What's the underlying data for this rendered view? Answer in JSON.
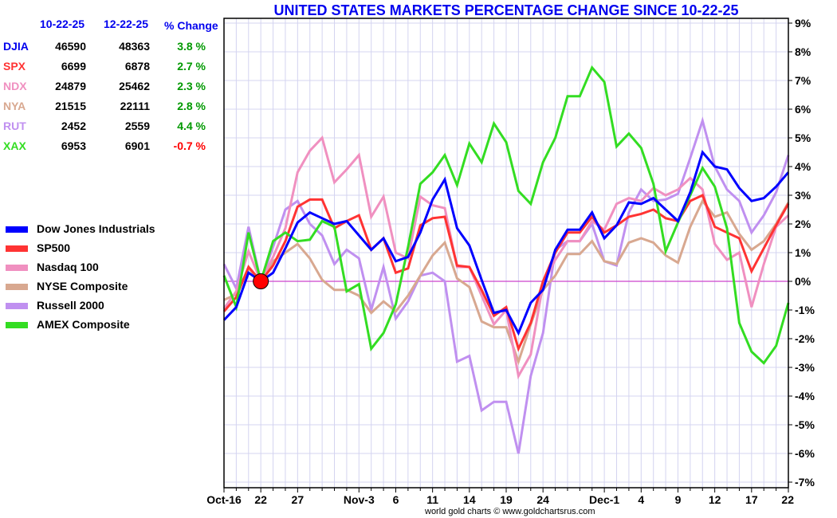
{
  "title": "UNITED STATES MARKETS PERCENTAGE CHANGE SINCE 10-22-25",
  "footer": "world gold charts © www.goldchartsrus.com",
  "table": {
    "headers": [
      "10-22-25",
      "12-22-25",
      "% Change"
    ],
    "rows": [
      {
        "symbol": "DJIA",
        "start": "46590",
        "end": "48363",
        "change": "3.8 %",
        "color": "#0000ee",
        "change_color": "#009900"
      },
      {
        "symbol": "SPX",
        "start": "6699",
        "end": "6878",
        "change": "2.7 %",
        "color": "#ff3333",
        "change_color": "#009900"
      },
      {
        "symbol": "NDX",
        "start": "24879",
        "end": "25462",
        "change": "2.3 %",
        "color": "#f090c0",
        "change_color": "#009900"
      },
      {
        "symbol": "NYA",
        "start": "21515",
        "end": "22111",
        "change": "2.8 %",
        "color": "#d8a890",
        "change_color": "#009900"
      },
      {
        "symbol": "RUT",
        "start": "2452",
        "end": "2559",
        "change": "4.4 %",
        "color": "#c090f0",
        "change_color": "#009900"
      },
      {
        "symbol": "XAX",
        "start": "6953",
        "end": "6901",
        "change": "-0.7 %",
        "color": "#33dd22",
        "change_color": "#ff0000"
      }
    ]
  },
  "chart_data": {
    "type": "line",
    "title": "UNITED STATES MARKETS PERCENTAGE CHANGE SINCE 10-22-25",
    "xlabel": "",
    "ylabel": "",
    "ylim": [
      -7,
      9
    ],
    "yticks": [
      9,
      8,
      7,
      6,
      5,
      4,
      3,
      2,
      1,
      0,
      -1,
      -2,
      -3,
      -4,
      -5,
      -6,
      -7
    ],
    "ytick_labels": [
      "9%",
      "8%",
      "7%",
      "6%",
      "5%",
      "4%",
      "3%",
      "2%",
      "1%",
      "0%",
      "-1%",
      "-2%",
      "-3%",
      "-4%",
      "-5%",
      "-6%",
      "-7%"
    ],
    "x_count": 47,
    "xtick_labels": [
      {
        "index": 0,
        "label": "Oct-16"
      },
      {
        "index": 3,
        "label": "22"
      },
      {
        "index": 6,
        "label": "27"
      },
      {
        "index": 11,
        "label": "Nov-3"
      },
      {
        "index": 14,
        "label": "6"
      },
      {
        "index": 17,
        "label": "11"
      },
      {
        "index": 20,
        "label": "14"
      },
      {
        "index": 23,
        "label": "19"
      },
      {
        "index": 26,
        "label": "24"
      },
      {
        "index": 31,
        "label": "Dec-1"
      },
      {
        "index": 34,
        "label": "4"
      },
      {
        "index": 37,
        "label": "9"
      },
      {
        "index": 40,
        "label": "12"
      },
      {
        "index": 43,
        "label": "17"
      },
      {
        "index": 46,
        "label": "22"
      }
    ],
    "baseline_marker": {
      "index": 3,
      "value": 0,
      "color": "#ff0000"
    },
    "zero_line_color": "#cc44cc",
    "grid": true,
    "legend_position": "left",
    "series": [
      {
        "name": "RUT",
        "legend": "Russell 2000",
        "color": "#c090f0",
        "values": [
          0.6,
          -0.25,
          1.9,
          0,
          1.2,
          2.5,
          2.8,
          2.0,
          1.6,
          0.6,
          1.1,
          0.8,
          -1.0,
          0.5,
          -1.3,
          -0.7,
          0.2,
          0.3,
          0.0,
          -2.8,
          -2.6,
          -4.5,
          -4.2,
          -4.2,
          -6.0,
          -3.3,
          -1.8,
          1.1,
          1.4,
          1.4,
          2.0,
          0.7,
          0.55,
          2.4,
          3.2,
          2.8,
          2.85,
          3.05,
          4.3,
          5.6,
          4.0,
          3.2,
          2.8,
          1.7,
          2.3,
          3.1,
          4.4
        ]
      },
      {
        "name": "NYA",
        "legend": "NYSE Composite",
        "color": "#d8a890",
        "values": [
          -0.65,
          -0.45,
          0.45,
          0,
          0.7,
          1.0,
          1.3,
          0.8,
          0.05,
          -0.3,
          -0.3,
          -0.5,
          -1.1,
          -0.7,
          -1.05,
          -0.5,
          0.2,
          0.9,
          1.35,
          0.1,
          -0.2,
          -1.4,
          -1.6,
          -1.6,
          -2.8,
          -1.5,
          -0.3,
          0.2,
          0.95,
          0.95,
          1.4,
          0.7,
          0.6,
          1.35,
          1.5,
          1.35,
          0.9,
          0.65,
          1.9,
          2.8,
          2.25,
          2.4,
          1.65,
          1.1,
          1.4,
          2.0,
          2.75
        ]
      },
      {
        "name": "NDX",
        "legend": "Nasdaq 100",
        "color": "#f090c0",
        "values": [
          -0.95,
          -0.35,
          1.05,
          0,
          0.85,
          1.85,
          3.8,
          4.55,
          5.0,
          3.45,
          3.9,
          4.4,
          2.25,
          2.95,
          1.0,
          0.8,
          2.95,
          2.65,
          2.55,
          0.5,
          0.5,
          -0.5,
          -1.5,
          -1.0,
          -3.3,
          -2.55,
          -0.1,
          0.75,
          1.4,
          1.4,
          2.1,
          1.8,
          2.7,
          2.9,
          2.8,
          3.25,
          3.0,
          3.2,
          3.6,
          3.2,
          1.3,
          0.75,
          1.0,
          -0.9,
          0.6,
          1.9,
          2.3
        ]
      },
      {
        "name": "SPX",
        "legend": "SP500",
        "color": "#ff3333",
        "values": [
          -1.05,
          -0.55,
          0.5,
          0,
          0.55,
          1.4,
          2.6,
          2.85,
          2.85,
          1.85,
          2.1,
          2.3,
          1.1,
          1.5,
          0.3,
          0.45,
          1.95,
          2.2,
          2.25,
          0.55,
          0.5,
          -0.3,
          -1.2,
          -0.9,
          -2.35,
          -1.45,
          0.0,
          1.0,
          1.7,
          1.7,
          2.25,
          1.7,
          1.95,
          2.25,
          2.35,
          2.5,
          2.2,
          2.1,
          2.8,
          3.0,
          1.9,
          1.7,
          1.5,
          0.35,
          1.15,
          1.95,
          2.7
        ]
      },
      {
        "name": "XAX",
        "legend": "AMEX Composite",
        "color": "#33dd22",
        "values": [
          0.2,
          -0.9,
          1.7,
          0,
          1.4,
          1.7,
          1.4,
          1.45,
          2.1,
          1.9,
          -0.35,
          -0.1,
          -2.35,
          -1.8,
          -0.8,
          1.2,
          3.4,
          3.8,
          4.4,
          3.35,
          4.8,
          4.15,
          5.5,
          4.85,
          3.15,
          2.7,
          4.15,
          5.0,
          6.45,
          6.45,
          7.45,
          6.95,
          4.7,
          5.15,
          4.65,
          3.4,
          1.05,
          2.05,
          3.0,
          3.95,
          3.3,
          1.85,
          -1.45,
          -2.45,
          -2.85,
          -2.25,
          -0.75
        ]
      },
      {
        "name": "DJIA",
        "legend": "Dow Jones Industrials",
        "color": "#0000ff",
        "values": [
          -1.35,
          -0.9,
          0.3,
          0,
          0.3,
          1.15,
          2.05,
          2.4,
          2.2,
          2.0,
          2.1,
          1.6,
          1.1,
          1.5,
          0.7,
          0.85,
          1.7,
          2.85,
          3.55,
          1.85,
          1.25,
          0.05,
          -1.1,
          -1.0,
          -1.8,
          -0.75,
          -0.3,
          1.1,
          1.8,
          1.8,
          2.4,
          1.5,
          1.95,
          2.75,
          2.7,
          2.9,
          2.5,
          2.1,
          3.1,
          4.5,
          4.0,
          3.9,
          3.25,
          2.8,
          2.9,
          3.3,
          3.8
        ]
      }
    ],
    "legend_order": [
      "DJIA",
      "SPX",
      "NDX",
      "NYA",
      "RUT",
      "XAX"
    ]
  }
}
